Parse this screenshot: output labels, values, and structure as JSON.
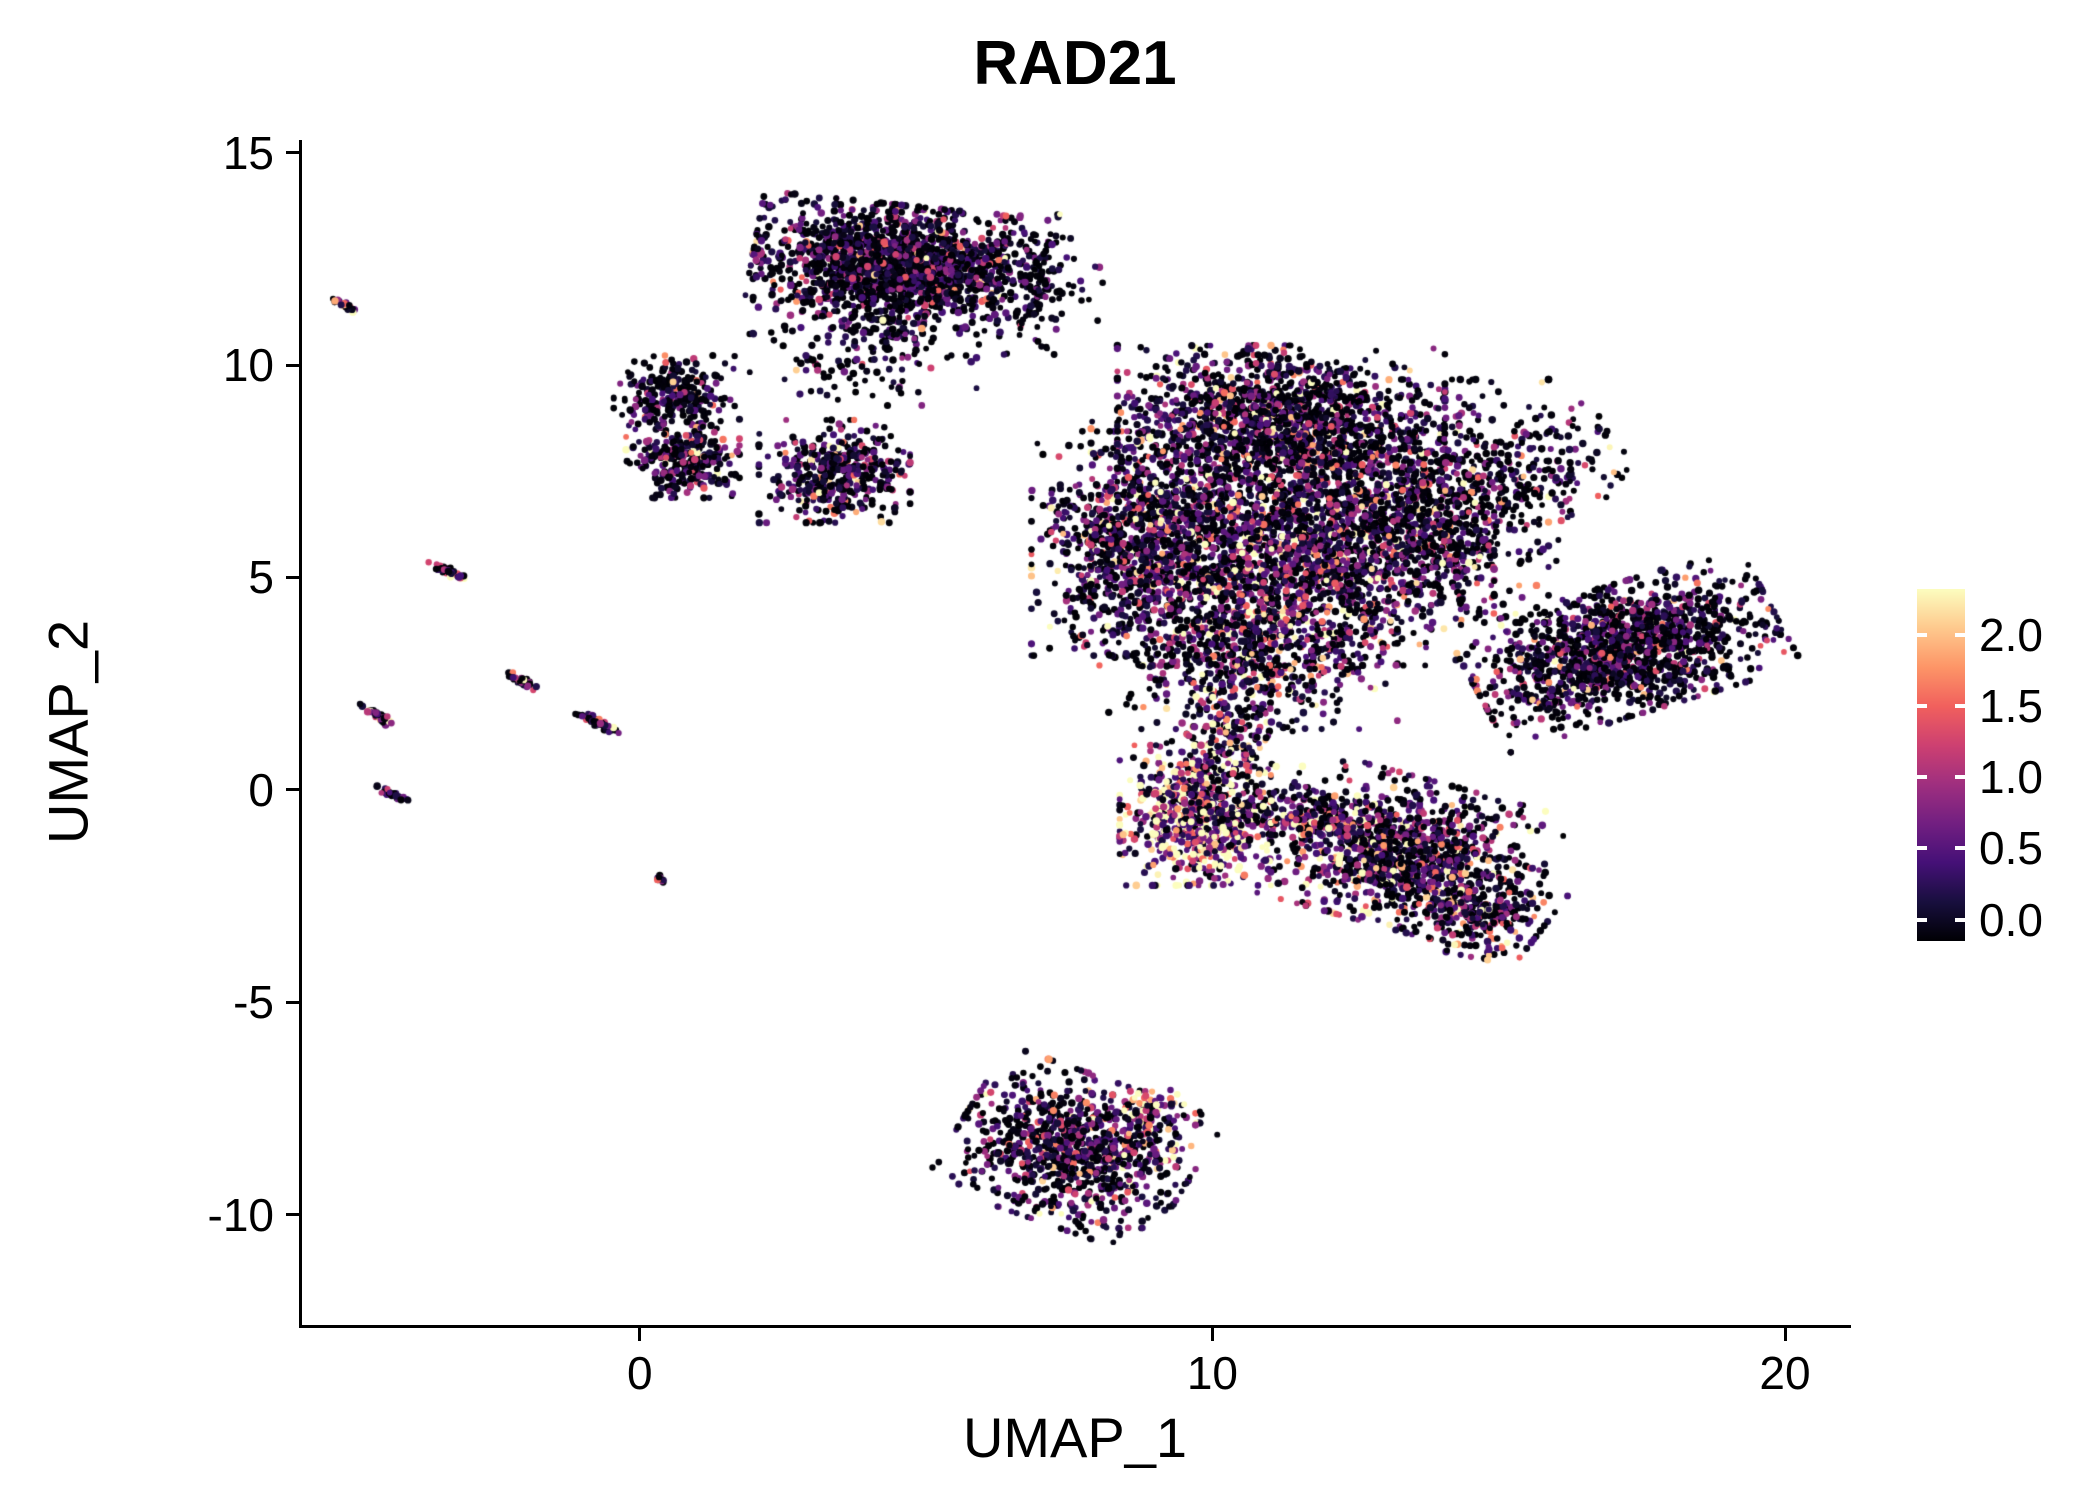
{
  "chart_data": {
    "type": "scatter",
    "title": "RAD21",
    "xlabel": "UMAP_1",
    "ylabel": "UMAP_2",
    "xlim": [
      -5.9,
      21.1
    ],
    "ylim": [
      -12.6,
      15.3
    ],
    "x_ticks": [
      0,
      10,
      20
    ],
    "x_tick_labels": [
      "0",
      "10",
      "20"
    ],
    "y_ticks": [
      15,
      10,
      5,
      0,
      -5,
      -10
    ],
    "y_tick_labels": [
      "15",
      "10",
      "5",
      "0",
      "-5",
      "-10"
    ],
    "grid": false,
    "point_radius_px": 3.3,
    "colormap": {
      "name": "magma",
      "anchors": [
        "#000004",
        "#180F3E",
        "#451077",
        "#721F81",
        "#9F2F7F",
        "#CD4071",
        "#F1605D",
        "#FD9567",
        "#FEC98D",
        "#FCFDBF"
      ],
      "domain": [
        0,
        2.3
      ]
    },
    "legend": {
      "ticks": [
        2.0,
        1.5,
        1.0,
        0.5,
        0.0
      ],
      "tick_labels": [
        "2.0",
        "1.5",
        "1.0",
        "0.5",
        "0.0"
      ],
      "bar_domain": [
        -0.15,
        2.32
      ]
    },
    "clusters": [
      {
        "name": "top-blob-main",
        "cx": 4.5,
        "cy": 12.4,
        "sx": 1.15,
        "sy": 0.62,
        "angle": -8,
        "n": 1700,
        "p0": 0.38,
        "mean": 0.55
      },
      {
        "name": "top-blob-tail",
        "cx": 3.9,
        "cy": 10.7,
        "sx": 0.9,
        "sy": 0.75,
        "angle": 0,
        "n": 240,
        "p0": 0.5,
        "mean": 0.45
      },
      {
        "name": "top-blob-right-sparse",
        "cx": 7.0,
        "cy": 11.9,
        "sx": 0.55,
        "sy": 0.75,
        "angle": 0,
        "n": 130,
        "p0": 0.55,
        "mean": 0.4
      },
      {
        "name": "left-upper-cluster",
        "cx": 0.6,
        "cy": 9.3,
        "sx": 0.48,
        "sy": 0.42,
        "angle": 0,
        "n": 260,
        "p0": 0.45,
        "mean": 0.5
      },
      {
        "name": "left-lower-cluster",
        "cx": 0.75,
        "cy": 7.8,
        "sx": 0.45,
        "sy": 0.42,
        "angle": 0,
        "n": 300,
        "p0": 0.35,
        "mean": 0.65
      },
      {
        "name": "mid-small-cluster",
        "cx": 3.4,
        "cy": 7.5,
        "sx": 0.6,
        "sy": 0.55,
        "angle": 0,
        "n": 470,
        "p0": 0.35,
        "mean": 0.55
      },
      {
        "name": "main-left-lobe",
        "cx": 8.6,
        "cy": 5.8,
        "sx": 0.8,
        "sy": 1.2,
        "angle": 0,
        "n": 900,
        "p0": 0.35,
        "mean": 0.7
      },
      {
        "name": "main-top-lobe",
        "cx": 11.2,
        "cy": 8.7,
        "sx": 1.3,
        "sy": 0.8,
        "angle": 0,
        "n": 1400,
        "p0": 0.35,
        "mean": 0.7
      },
      {
        "name": "main-core",
        "cx": 11.4,
        "cy": 5.9,
        "sx": 1.6,
        "sy": 1.35,
        "angle": 0,
        "n": 2300,
        "p0": 0.3,
        "mean": 0.8
      },
      {
        "name": "main-right-extension",
        "cx": 14.0,
        "cy": 6.8,
        "sx": 0.85,
        "sy": 1.3,
        "angle": 0,
        "n": 650,
        "p0": 0.45,
        "mean": 0.6
      },
      {
        "name": "right-upper-sparse",
        "cx": 15.6,
        "cy": 7.3,
        "sx": 0.6,
        "sy": 0.9,
        "angle": -30,
        "n": 180,
        "p0": 0.5,
        "mean": 0.5
      },
      {
        "name": "main-lower-trail",
        "cx": 10.7,
        "cy": 3.3,
        "sx": 1.15,
        "sy": 0.85,
        "angle": 0,
        "n": 650,
        "p0": 0.35,
        "mean": 0.75
      },
      {
        "name": "right-wing",
        "cx": 17.2,
        "cy": 3.3,
        "sx": 1.25,
        "sy": 0.68,
        "angle": 22,
        "n": 1400,
        "p0": 0.42,
        "mean": 0.6
      },
      {
        "name": "hot-cluster",
        "cx": 9.7,
        "cy": -0.6,
        "sx": 0.6,
        "sy": 0.75,
        "angle": 0,
        "n": 700,
        "p0": 0.08,
        "mean": 1.45
      },
      {
        "name": "hot-cluster-trail",
        "cx": 10.3,
        "cy": 1.2,
        "sx": 0.5,
        "sy": 0.8,
        "angle": 0,
        "n": 220,
        "p0": 0.25,
        "mean": 1.0
      },
      {
        "name": "lower-right-cluster",
        "cx": 13.4,
        "cy": -1.5,
        "sx": 1.1,
        "sy": 0.8,
        "angle": -20,
        "n": 1100,
        "p0": 0.3,
        "mean": 0.8
      },
      {
        "name": "lower-right-tip",
        "cx": 14.7,
        "cy": -2.9,
        "sx": 0.5,
        "sy": 0.5,
        "angle": -30,
        "n": 250,
        "p0": 0.3,
        "mean": 0.85
      },
      {
        "name": "hot-band-right",
        "cx": 11.6,
        "cy": -0.7,
        "sx": 0.9,
        "sy": 0.35,
        "angle": -5,
        "n": 260,
        "p0": 0.3,
        "mean": 0.8
      },
      {
        "name": "bottom-cluster",
        "cx": 7.6,
        "cy": -8.5,
        "sx": 0.95,
        "sy": 0.8,
        "angle": -25,
        "n": 950,
        "p0": 0.35,
        "mean": 0.7
      },
      {
        "name": "bottom-orange-arc",
        "cx": 8.9,
        "cy": -7.6,
        "sx": 0.35,
        "sy": 0.3,
        "angle": -40,
        "n": 70,
        "p0": 0.1,
        "mean": 1.3
      },
      {
        "name": "streak-1",
        "cx": -5.15,
        "cy": 11.4,
        "sx": 0.13,
        "sy": 0.035,
        "angle": -33,
        "n": 22,
        "p0": 0.3,
        "mean": 0.9
      },
      {
        "name": "streak-2",
        "cx": -3.35,
        "cy": 5.15,
        "sx": 0.18,
        "sy": 0.04,
        "angle": -33,
        "n": 40,
        "p0": 0.35,
        "mean": 0.8
      },
      {
        "name": "streak-3",
        "cx": -2.05,
        "cy": 2.55,
        "sx": 0.16,
        "sy": 0.04,
        "angle": -33,
        "n": 36,
        "p0": 0.35,
        "mean": 0.85
      },
      {
        "name": "streak-4",
        "cx": -0.7,
        "cy": 1.55,
        "sx": 0.22,
        "sy": 0.05,
        "angle": -33,
        "n": 46,
        "p0": 0.35,
        "mean": 0.8
      },
      {
        "name": "streak-5",
        "cx": -4.6,
        "cy": 1.75,
        "sx": 0.2,
        "sy": 0.045,
        "angle": -33,
        "n": 36,
        "p0": 0.3,
        "mean": 0.9
      },
      {
        "name": "streak-6",
        "cx": -4.35,
        "cy": -0.1,
        "sx": 0.15,
        "sy": 0.04,
        "angle": -33,
        "n": 28,
        "p0": 0.4,
        "mean": 0.7
      },
      {
        "name": "isolated-dot",
        "cx": 0.35,
        "cy": -2.1,
        "sx": 0.06,
        "sy": 0.04,
        "angle": 0,
        "n": 10,
        "p0": 0.6,
        "mean": 0.4
      }
    ]
  }
}
